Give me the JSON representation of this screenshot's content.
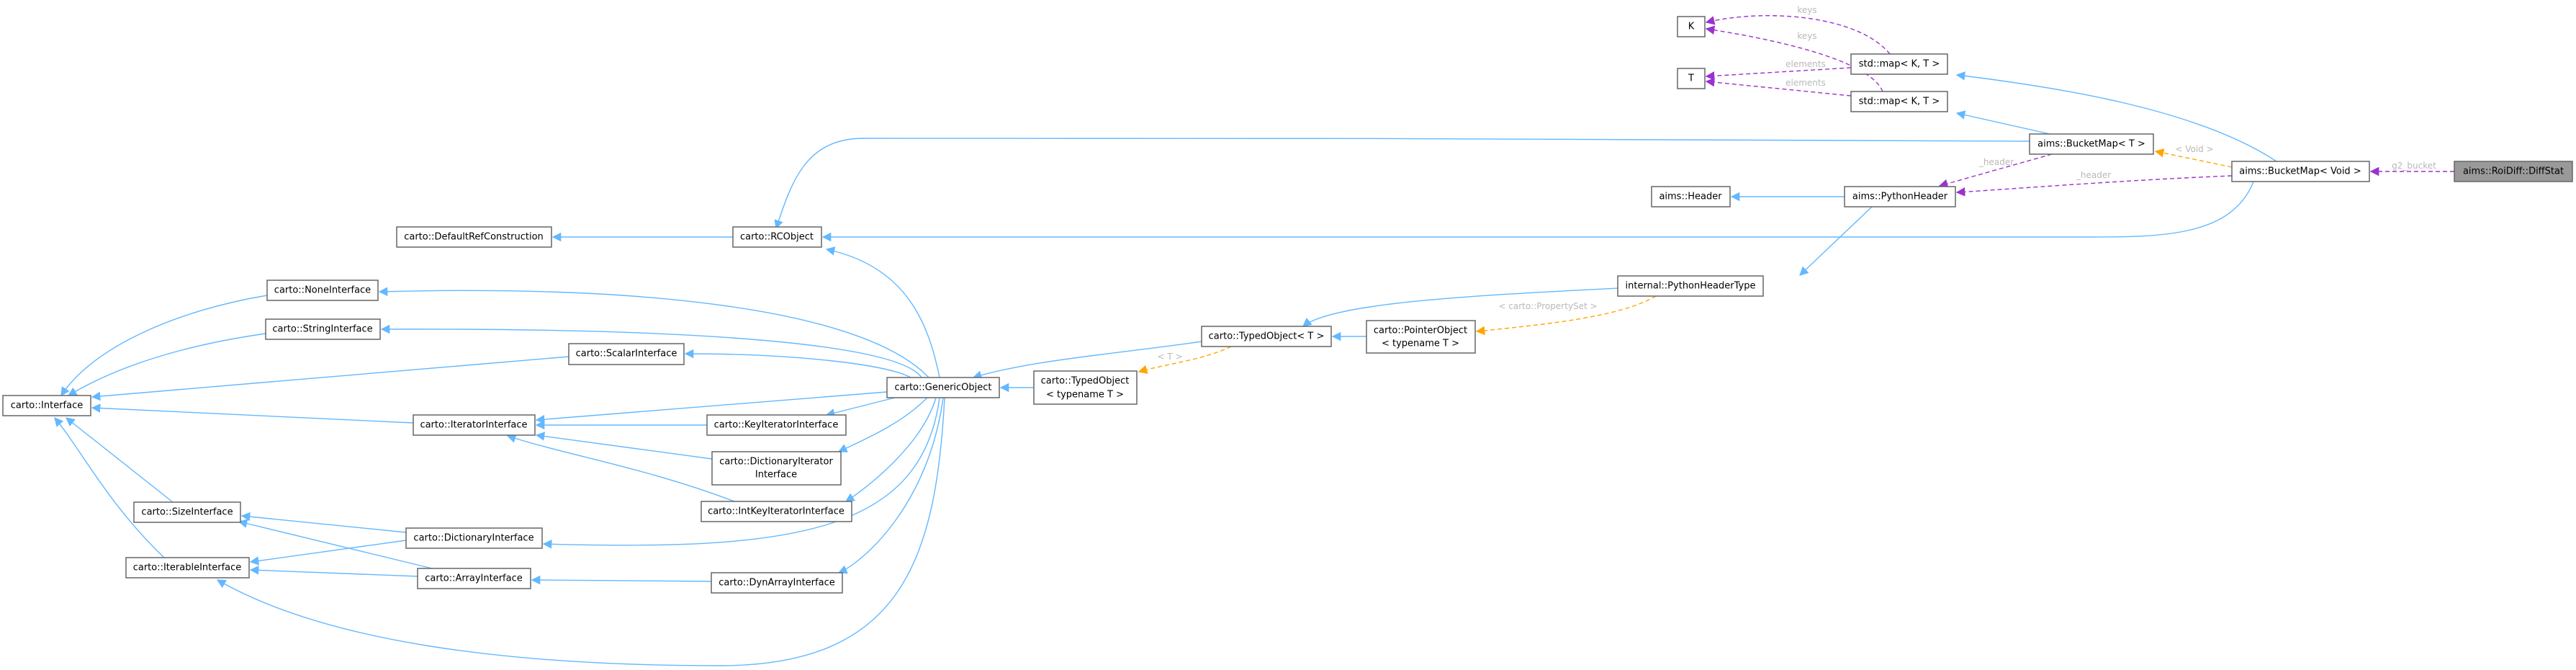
{
  "diagram": {
    "colors": {
      "inheritance": "#63b8ff",
      "usage": "#9a32cd",
      "template": "#ffa500",
      "focus_node_fill": "#999999",
      "node_border": "#666666"
    },
    "nodes": {
      "k": "K",
      "t": "T",
      "map1": "std::map< K, T >",
      "map2": "std::map< K, T >",
      "bucketmap_t": "aims::BucketMap< T >",
      "bucketmap_void": "aims::BucketMap< Void >",
      "diffstat": "aims::RoiDiff::DiffStat",
      "aims_header": "aims::Header",
      "python_header": "aims::PythonHeader",
      "python_header_type": "internal::PythonHeaderType",
      "pointer_object_1": "carto::PointerObject",
      "pointer_object_2": "< typename T >",
      "typed_object_t": "carto::TypedObject< T >",
      "typed_object_1": "carto::TypedObject",
      "typed_object_2": "< typename T >",
      "generic_object": "carto::GenericObject",
      "rcobject": "carto::RCObject",
      "default_ref": "carto::DefaultRefConstruction",
      "none_interface": "carto::NoneInterface",
      "string_interface": "carto::StringInterface",
      "scalar_interface": "carto::ScalarInterface",
      "interface": "carto::Interface",
      "iterator_interface": "carto::IteratorInterface",
      "key_iterator_interface": "carto::KeyIteratorInterface",
      "dict_iterator_1": "carto::DictionaryIterator",
      "dict_iterator_2": "Interface",
      "intkey_iterator_interface": "carto::IntKeyIteratorInterface",
      "size_interface": "carto::SizeInterface",
      "dictionary_interface": "carto::DictionaryInterface",
      "iterable_interface": "carto::IterableInterface",
      "array_interface": "carto::ArrayInterface",
      "dynarray_interface": "carto::DynArrayInterface"
    },
    "edge_labels": {
      "keys_1": "keys",
      "keys_2": "keys",
      "elements_1": "elements",
      "elements_2": "elements",
      "void": "< Void >",
      "header_1": "_header",
      "header_2": "_header",
      "g2_bucket": "g2_bucket",
      "property_set": "< carto::PropertySet >",
      "t_param": "< T >"
    }
  }
}
